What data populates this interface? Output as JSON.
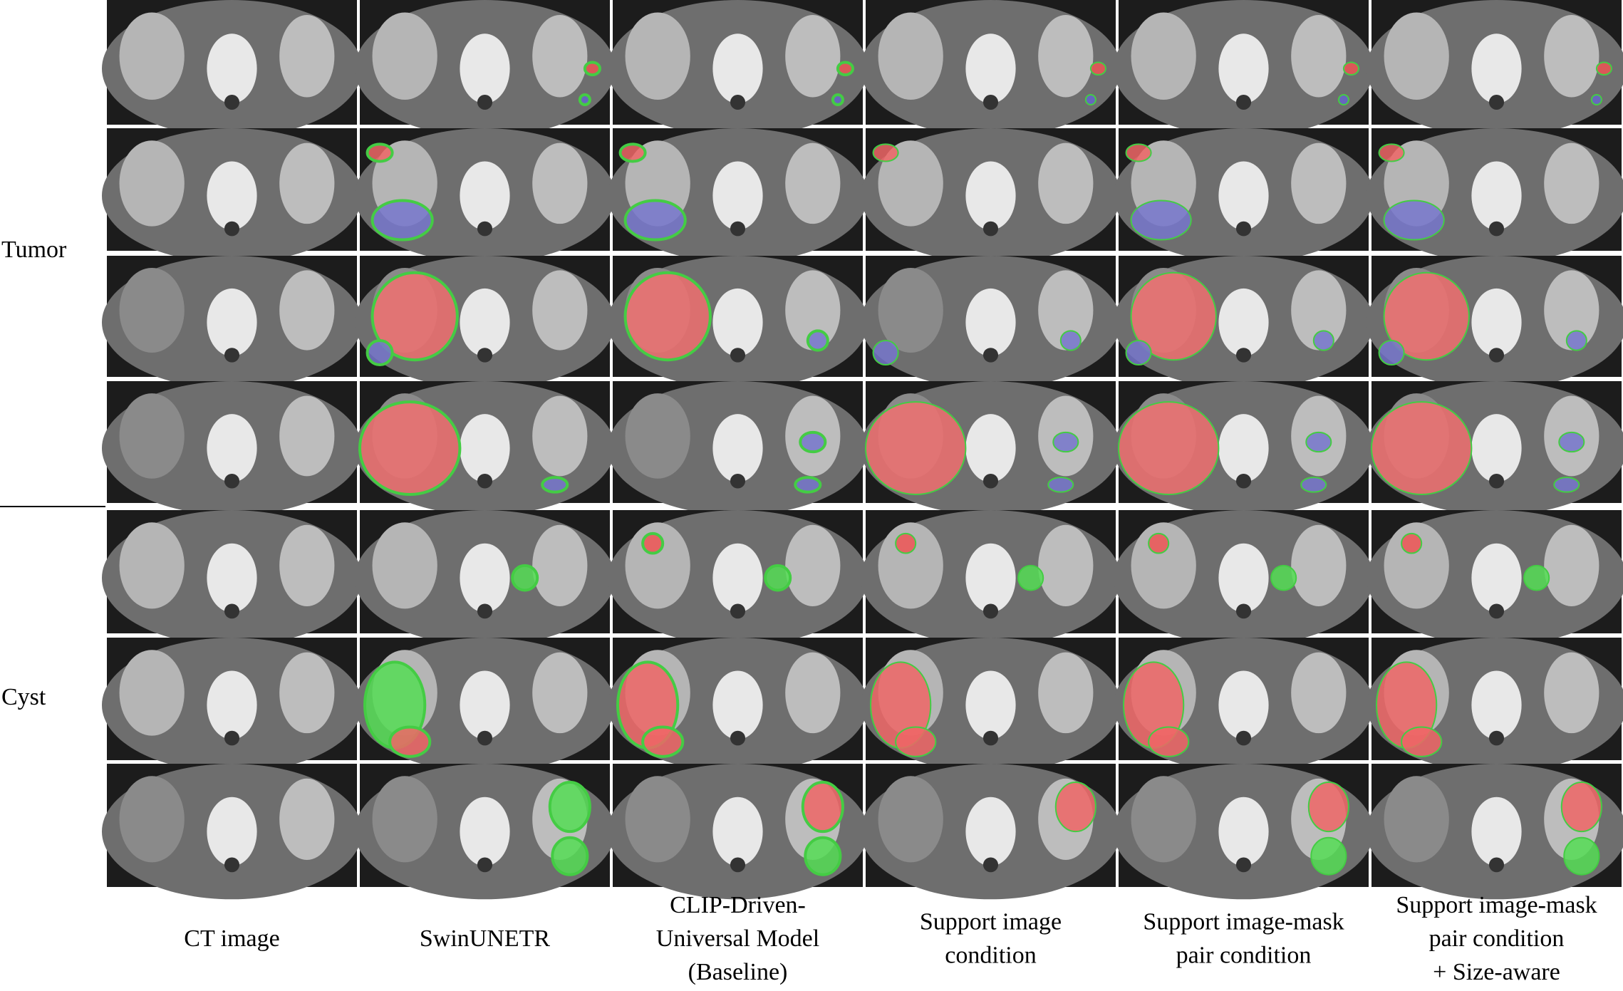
{
  "row_labels": [
    "Tumor",
    "Cyst"
  ],
  "column_labels": [
    [
      "CT image"
    ],
    [
      "SwinUNETR"
    ],
    [
      "CLIP-Driven-",
      "Universal Model",
      "(Baseline)"
    ],
    [
      "Support image",
      "condition"
    ],
    [
      "Support image-mask",
      "pair condition"
    ],
    [
      "Support image-mask",
      "pair condition",
      "+ Size-aware"
    ]
  ]
}
